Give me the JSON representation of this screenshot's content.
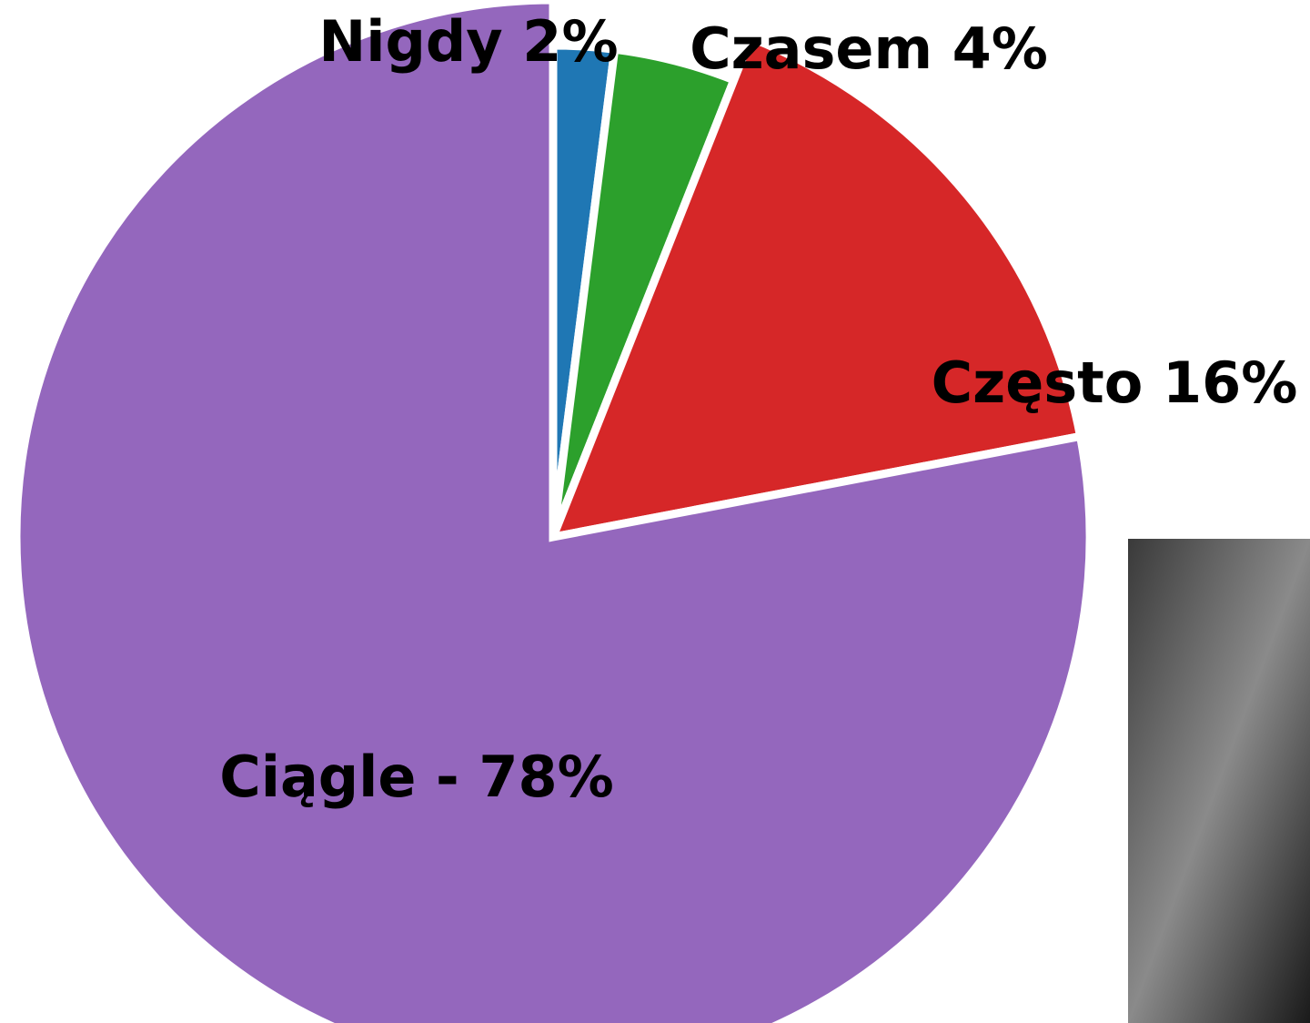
{
  "chart_data": {
    "type": "pie",
    "values": [
      2,
      4,
      16,
      78
    ],
    "value_labels": [
      "Nigdy 2%",
      "Czasem 4%",
      "Często 16%",
      "Ciągle - 78%"
    ],
    "colors": [
      "#1f77b4",
      "#2ca02c",
      "#d62728",
      "#9467bd"
    ]
  }
}
